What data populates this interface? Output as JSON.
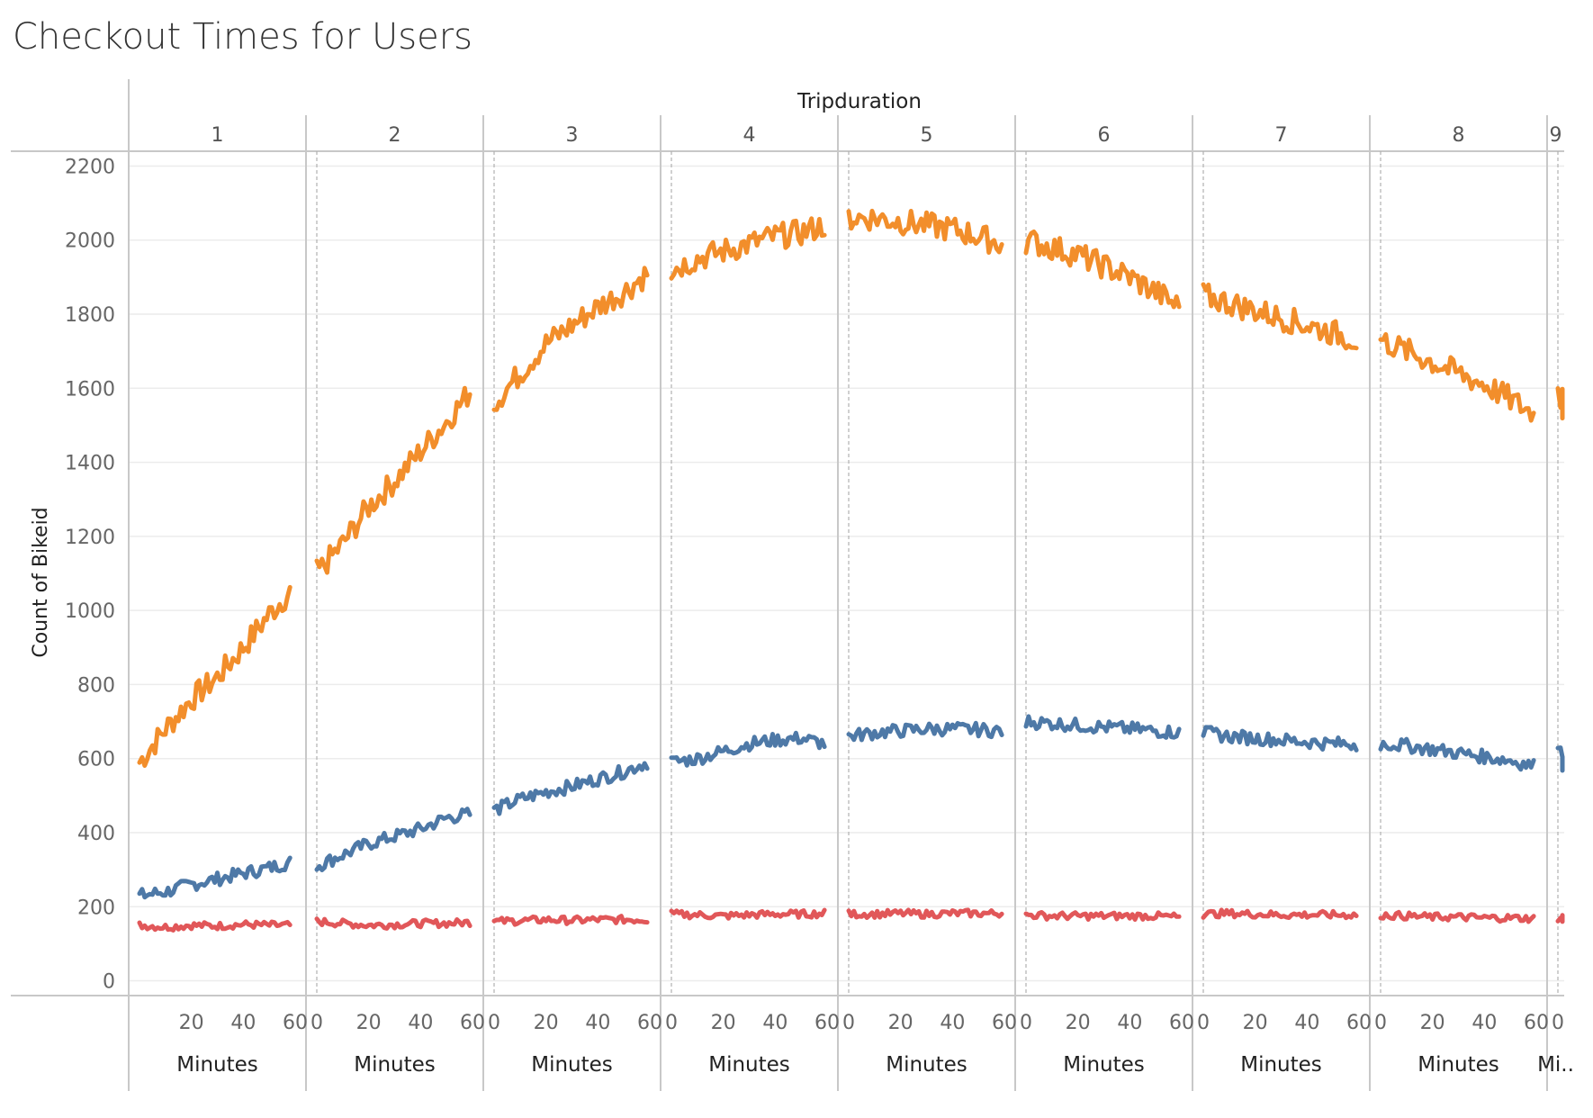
{
  "chart_data": {
    "type": "line",
    "title": "Checkout Times for Users",
    "column_field": "Tripduration",
    "ylabel": "Count of Bikeid",
    "xlabel": "Minutes",
    "ylim": [
      -40,
      2240
    ],
    "yticks": [
      0,
      200,
      400,
      600,
      800,
      1000,
      1200,
      1400,
      1600,
      1800,
      2000,
      2200
    ],
    "xlim": [
      0,
      60
    ],
    "xticks": [
      0,
      20,
      40,
      60
    ],
    "grid": true,
    "colors": [
      "#f28e2b",
      "#4e79a7",
      "#e15759"
    ],
    "panels": [
      {
        "label": "1",
        "truncated_xlabel": "Minutes",
        "series": [
          {
            "x": [
              0,
              10,
              20,
              30,
              40,
              50,
              58
            ],
            "values": [
              590,
              680,
              760,
              820,
              900,
              990,
              1050
            ]
          },
          {
            "x": [
              0,
              10,
              20,
              30,
              40,
              50,
              58
            ],
            "values": [
              230,
              240,
              260,
              275,
              290,
              305,
              320
            ]
          },
          {
            "x": [
              0,
              10,
              20,
              30,
              40,
              50,
              58
            ],
            "values": [
              150,
              145,
              150,
              148,
              152,
              150,
              150
            ]
          }
        ]
      },
      {
        "label": "2",
        "truncated_xlabel": "Minutes",
        "series": [
          {
            "x": [
              0,
              10,
              20,
              30,
              40,
              50,
              59
            ],
            "values": [
              1100,
              1180,
              1280,
              1350,
              1430,
              1510,
              1590
            ]
          },
          {
            "x": [
              0,
              10,
              20,
              30,
              40,
              50,
              59
            ],
            "values": [
              310,
              340,
              370,
              390,
              410,
              440,
              450
            ]
          },
          {
            "x": [
              0,
              10,
              20,
              30,
              40,
              50,
              59
            ],
            "values": [
              160,
              155,
              150,
              152,
              155,
              155,
              158
            ]
          }
        ]
      },
      {
        "label": "3",
        "truncated_xlabel": "Minutes",
        "series": [
          {
            "x": [
              0,
              10,
              20,
              30,
              40,
              50,
              59
            ],
            "values": [
              1560,
              1640,
              1720,
              1770,
              1820,
              1860,
              1910
            ]
          },
          {
            "x": [
              0,
              10,
              20,
              30,
              40,
              50,
              59
            ],
            "values": [
              460,
              490,
              510,
              525,
              545,
              565,
              590
            ]
          },
          {
            "x": [
              0,
              10,
              20,
              30,
              40,
              50,
              59
            ],
            "values": [
              160,
              162,
              165,
              163,
              165,
              165,
              165
            ]
          }
        ]
      },
      {
        "label": "4",
        "truncated_xlabel": "Minutes",
        "series": [
          {
            "x": [
              0,
              10,
              20,
              30,
              40,
              50,
              59
            ],
            "values": [
              1920,
              1950,
              1970,
              1990,
              2010,
              2020,
              2040
            ]
          },
          {
            "x": [
              0,
              10,
              20,
              30,
              40,
              50,
              59
            ],
            "values": [
              590,
              600,
              620,
              640,
              650,
              655,
              640
            ]
          },
          {
            "x": [
              0,
              10,
              20,
              30,
              40,
              50,
              59
            ],
            "values": [
              180,
              178,
              175,
              178,
              180,
              180,
              182
            ]
          }
        ]
      },
      {
        "label": "5",
        "truncated_xlabel": "Minutes",
        "series": [
          {
            "x": [
              0,
              10,
              20,
              30,
              40,
              50,
              59
            ],
            "values": [
              2060,
              2060,
              2050,
              2040,
              2030,
              2010,
              1990
            ]
          },
          {
            "x": [
              0,
              10,
              20,
              30,
              40,
              50,
              59
            ],
            "values": [
              660,
              670,
              675,
              680,
              680,
              678,
              675
            ]
          },
          {
            "x": [
              0,
              10,
              20,
              30,
              40,
              50,
              59
            ],
            "values": [
              180,
              180,
              182,
              180,
              182,
              182,
              182
            ]
          }
        ]
      },
      {
        "label": "6",
        "truncated_xlabel": "Minutes",
        "series": [
          {
            "x": [
              0,
              10,
              20,
              30,
              40,
              50,
              59
            ],
            "values": [
              2000,
              1980,
              1960,
              1930,
              1900,
              1860,
              1820
            ]
          },
          {
            "x": [
              0,
              10,
              20,
              30,
              40,
              50,
              59
            ],
            "values": [
              700,
              695,
              690,
              685,
              680,
              675,
              670
            ]
          },
          {
            "x": [
              0,
              10,
              20,
              30,
              40,
              50,
              59
            ],
            "values": [
              178,
              175,
              175,
              175,
              175,
              175,
              172
            ]
          }
        ]
      },
      {
        "label": "7",
        "truncated_xlabel": "Minutes",
        "series": [
          {
            "x": [
              0,
              10,
              20,
              30,
              40,
              50,
              59
            ],
            "values": [
              1850,
              1830,
              1810,
              1790,
              1770,
              1750,
              1730
            ]
          },
          {
            "x": [
              0,
              10,
              20,
              30,
              40,
              50,
              59
            ],
            "values": [
              670,
              660,
              655,
              650,
              645,
              640,
              640
            ]
          },
          {
            "x": [
              0,
              10,
              20,
              30,
              40,
              50,
              59
            ],
            "values": [
              180,
              182,
              180,
              178,
              178,
              178,
              178
            ]
          }
        ]
      },
      {
        "label": "8",
        "truncated_xlabel": "Minutes",
        "series": [
          {
            "x": [
              0,
              10,
              20,
              30,
              40,
              50,
              59
            ],
            "values": [
              1730,
              1700,
              1670,
              1640,
              1610,
              1570,
              1530
            ]
          },
          {
            "x": [
              0,
              10,
              20,
              30,
              40,
              50,
              59
            ],
            "values": [
              640,
              635,
              625,
              615,
              605,
              595,
              580
            ]
          },
          {
            "x": [
              0,
              10,
              20,
              30,
              40,
              50,
              59
            ],
            "values": [
              178,
              175,
              172,
              172,
              170,
              170,
              168
            ]
          }
        ]
      },
      {
        "label": "9",
        "truncated_xlabel": "Mi..",
        "series": [
          {
            "x": [
              0,
              4,
              8,
              12
            ],
            "values": [
              1580,
              1580,
              1560,
              1530
            ]
          },
          {
            "x": [
              0,
              4,
              8,
              12
            ],
            "values": [
              620,
              590,
              580,
              590
            ]
          },
          {
            "x": [
              0,
              4,
              8,
              12
            ],
            "values": [
              170,
              168,
              168,
              170
            ]
          }
        ]
      }
    ]
  }
}
